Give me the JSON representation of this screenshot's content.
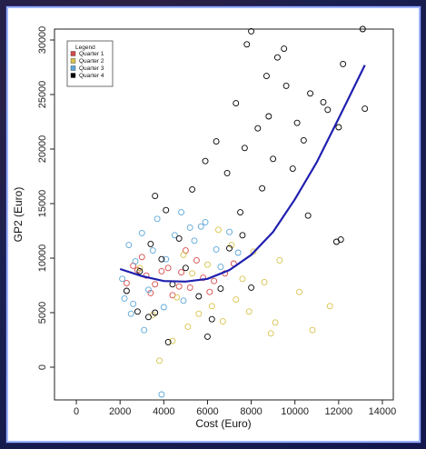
{
  "chart_data": {
    "type": "scatter",
    "title": "",
    "xlabel": "Cost (Euro)",
    "ylabel": "GP2 (Euro)",
    "xlim": [
      -1000,
      14500
    ],
    "ylim": [
      -3000,
      31000
    ],
    "xticks": [
      0,
      2000,
      4000,
      6000,
      8000,
      10000,
      12000,
      14000
    ],
    "yticks": [
      0,
      5000,
      10000,
      15000,
      20000,
      25000,
      30000
    ],
    "grid": false,
    "legend": {
      "title": "Legend",
      "placement": "top-left",
      "entries": [
        {
          "label": "Quarter 1",
          "color": "#d64a4a"
        },
        {
          "label": "Quarter 2",
          "color": "#d8c34a"
        },
        {
          "label": "Quarter 3",
          "color": "#5aa6d8"
        },
        {
          "label": "Quarter 4",
          "color": "#000000"
        }
      ]
    },
    "fit_curve": {
      "color": "#1f1fb0",
      "points": [
        [
          2000,
          9000
        ],
        [
          3000,
          8350
        ],
        [
          4000,
          7900
        ],
        [
          5000,
          7850
        ],
        [
          6000,
          8100
        ],
        [
          7000,
          8900
        ],
        [
          8000,
          10300
        ],
        [
          9000,
          12400
        ],
        [
          10000,
          15400
        ],
        [
          11000,
          18800
        ],
        [
          12000,
          22800
        ],
        [
          13200,
          27700
        ]
      ]
    },
    "series": [
      {
        "name": "Quarter 1",
        "color": "#d64a4a",
        "points": [
          [
            2600,
            9300
          ],
          [
            3200,
            8400
          ],
          [
            3600,
            7600
          ],
          [
            4200,
            9100
          ],
          [
            4800,
            8700
          ],
          [
            5200,
            7300
          ],
          [
            5800,
            8200
          ],
          [
            6300,
            7900
          ],
          [
            3000,
            10100
          ],
          [
            4400,
            6600
          ],
          [
            5500,
            9800
          ],
          [
            6800,
            8600
          ],
          [
            3900,
            8800
          ],
          [
            2300,
            7700
          ],
          [
            5000,
            10700
          ],
          [
            6100,
            6900
          ],
          [
            4700,
            7400
          ],
          [
            3400,
            6800
          ],
          [
            7200,
            9500
          ],
          [
            2800,
            8900
          ]
        ]
      },
      {
        "name": "Quarter 2",
        "color": "#d8c34a",
        "points": [
          [
            3800,
            600
          ],
          [
            4400,
            2400
          ],
          [
            5100,
            3700
          ],
          [
            5600,
            4900
          ],
          [
            6200,
            5600
          ],
          [
            6700,
            4200
          ],
          [
            7300,
            6200
          ],
          [
            7900,
            5100
          ],
          [
            8600,
            7800
          ],
          [
            9300,
            9800
          ],
          [
            10200,
            6900
          ],
          [
            11600,
            5600
          ],
          [
            9100,
            4100
          ],
          [
            4600,
            6400
          ],
          [
            5300,
            8600
          ],
          [
            6000,
            9400
          ],
          [
            7100,
            11200
          ],
          [
            8100,
            10600
          ],
          [
            2900,
            9100
          ],
          [
            3500,
            4800
          ],
          [
            4900,
            10300
          ],
          [
            6500,
            12600
          ],
          [
            7600,
            8100
          ],
          [
            8900,
            3100
          ],
          [
            10800,
            3400
          ]
        ]
      },
      {
        "name": "Quarter 3",
        "color": "#5aa6d8",
        "points": [
          [
            2100,
            8100
          ],
          [
            2400,
            11200
          ],
          [
            2600,
            5800
          ],
          [
            3000,
            12300
          ],
          [
            3300,
            7100
          ],
          [
            3700,
            13600
          ],
          [
            4100,
            9900
          ],
          [
            4500,
            12100
          ],
          [
            4900,
            6100
          ],
          [
            5400,
            11600
          ],
          [
            5900,
            13300
          ],
          [
            6400,
            10800
          ],
          [
            2200,
            6300
          ],
          [
            2700,
            9700
          ],
          [
            3500,
            10700
          ],
          [
            4000,
            5500
          ],
          [
            4800,
            14200
          ],
          [
            5700,
            12900
          ],
          [
            6600,
            9200
          ],
          [
            7400,
            10500
          ],
          [
            3900,
            -2500
          ],
          [
            2500,
            4900
          ],
          [
            7000,
            12400
          ],
          [
            3100,
            3400
          ],
          [
            5200,
            12800
          ]
        ]
      },
      {
        "name": "Quarter 4",
        "color": "#000000",
        "points": [
          [
            2300,
            7000
          ],
          [
            2800,
            5100
          ],
          [
            3300,
            4600
          ],
          [
            3600,
            15700
          ],
          [
            4100,
            14400
          ],
          [
            4700,
            11800
          ],
          [
            5300,
            16300
          ],
          [
            5900,
            18900
          ],
          [
            6400,
            20700
          ],
          [
            6900,
            17800
          ],
          [
            7300,
            24200
          ],
          [
            7800,
            29600
          ],
          [
            8000,
            30800
          ],
          [
            8300,
            21900
          ],
          [
            8700,
            26700
          ],
          [
            9200,
            28400
          ],
          [
            9500,
            29200
          ],
          [
            10100,
            22400
          ],
          [
            10700,
            25100
          ],
          [
            11300,
            24300
          ],
          [
            12000,
            22000
          ],
          [
            12200,
            27800
          ],
          [
            13100,
            31000
          ],
          [
            13200,
            23700
          ],
          [
            12100,
            11700
          ],
          [
            11900,
            11500
          ],
          [
            10600,
            13900
          ],
          [
            9900,
            18200
          ],
          [
            9000,
            19100
          ],
          [
            8500,
            16400
          ],
          [
            7500,
            14200
          ],
          [
            7000,
            10900
          ],
          [
            6600,
            7200
          ],
          [
            6200,
            4400
          ],
          [
            5600,
            6500
          ],
          [
            5000,
            9100
          ],
          [
            4400,
            7600
          ],
          [
            3900,
            9900
          ],
          [
            3400,
            11300
          ],
          [
            2900,
            8800
          ],
          [
            7700,
            20100
          ],
          [
            8800,
            23000
          ],
          [
            9600,
            25800
          ],
          [
            10400,
            20800
          ],
          [
            11500,
            23600
          ],
          [
            6000,
            2800
          ],
          [
            8000,
            7300
          ],
          [
            4200,
            2300
          ],
          [
            3600,
            5000
          ],
          [
            7600,
            12100
          ]
        ]
      }
    ]
  }
}
